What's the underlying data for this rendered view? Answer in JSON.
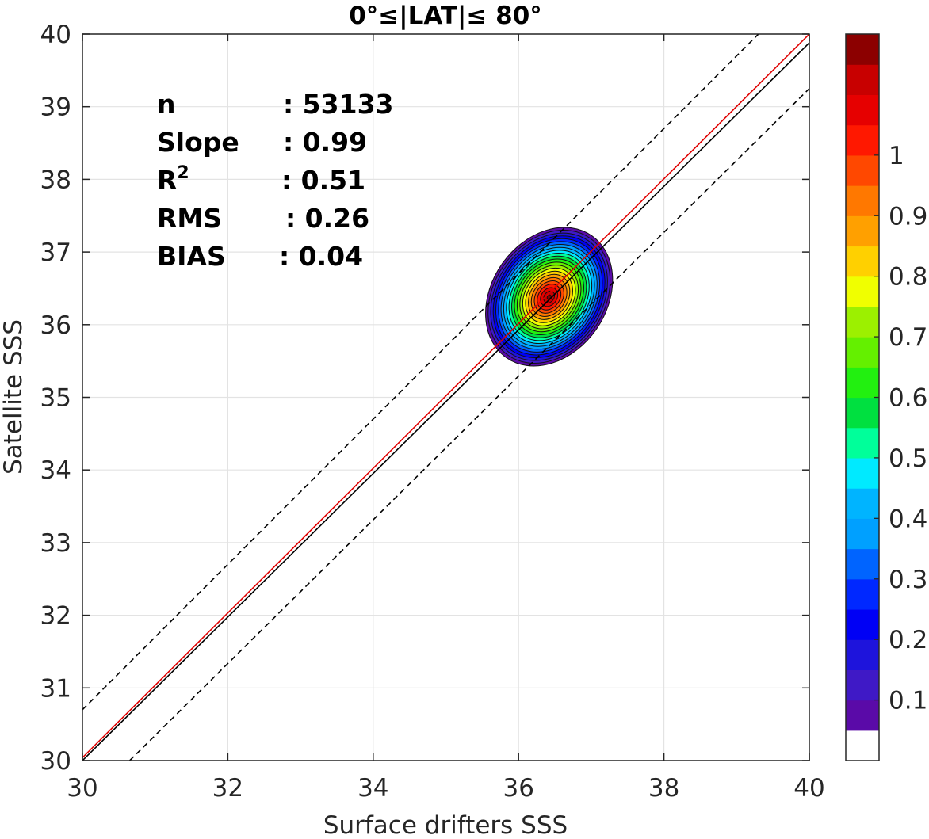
{
  "chart_data": {
    "type": "contour",
    "title": "0°≤|LAT|≤ 80°",
    "xlabel": "Surface drifters SSS",
    "ylabel": "Satellite SSS",
    "xlim": [
      30,
      40
    ],
    "ylim": [
      30,
      40
    ],
    "xticks": [
      30,
      32,
      34,
      36,
      38,
      40
    ],
    "yticks": [
      30,
      31,
      32,
      33,
      34,
      35,
      36,
      37,
      38,
      39,
      40
    ],
    "grid": true,
    "stats": [
      {
        "label": "n",
        "value": ": 53133"
      },
      {
        "label": "Slope",
        "value": ": 0.99"
      },
      {
        "label": "R",
        "sup": "2",
        "value": ": 0.51"
      },
      {
        "label": "RMS",
        "value": ": 0.26"
      },
      {
        "label": "BIAS",
        "value": ": 0.04"
      }
    ],
    "lines": [
      {
        "kind": "one-to-one",
        "color": "#000000",
        "style": "solid",
        "x": [
          30,
          40
        ],
        "y": [
          30,
          39.88
        ]
      },
      {
        "kind": "regression",
        "color": "#e00000",
        "style": "solid",
        "x": [
          30,
          40
        ],
        "y": [
          30.04,
          40.0
        ]
      },
      {
        "kind": "upper-bound",
        "color": "#000000",
        "style": "dashed",
        "x": [
          30,
          39.3
        ],
        "y": [
          30.7,
          40.0
        ]
      },
      {
        "kind": "lower-bound",
        "color": "#000000",
        "style": "dashed",
        "x": [
          30.65,
          40
        ],
        "y": [
          30.0,
          39.25
        ]
      }
    ],
    "density_contour": {
      "center": [
        36.42,
        36.38
      ],
      "outer_x_range": [
        35.82,
        37.02
      ],
      "outer_y_range": [
        35.5,
        37.27
      ],
      "levels": [
        0.05,
        0.1,
        0.15,
        0.2,
        0.25,
        0.3,
        0.35,
        0.4,
        0.45,
        0.5,
        0.55,
        0.6,
        0.65,
        0.7,
        0.75,
        0.8,
        0.85,
        0.9,
        0.95
      ]
    },
    "colorbar": {
      "ticks": [
        "0.1",
        "0.2",
        "0.3",
        "0.4",
        "0.5",
        "0.6",
        "0.7",
        "0.8",
        "0.9",
        "1"
      ],
      "colors": [
        "#ffffff",
        "#5a0aa8",
        "#3f19c6",
        "#1e14dc",
        "#0000f5",
        "#0028ff",
        "#0064ff",
        "#00a0ff",
        "#00b4ff",
        "#00eaff",
        "#00ff9a",
        "#00e040",
        "#22f010",
        "#64f000",
        "#9cf000",
        "#f0ff00",
        "#ffd000",
        "#ffa000",
        "#ff7800",
        "#ff4800",
        "#ff1800",
        "#e60000",
        "#c80000",
        "#8c0000"
      ]
    }
  }
}
